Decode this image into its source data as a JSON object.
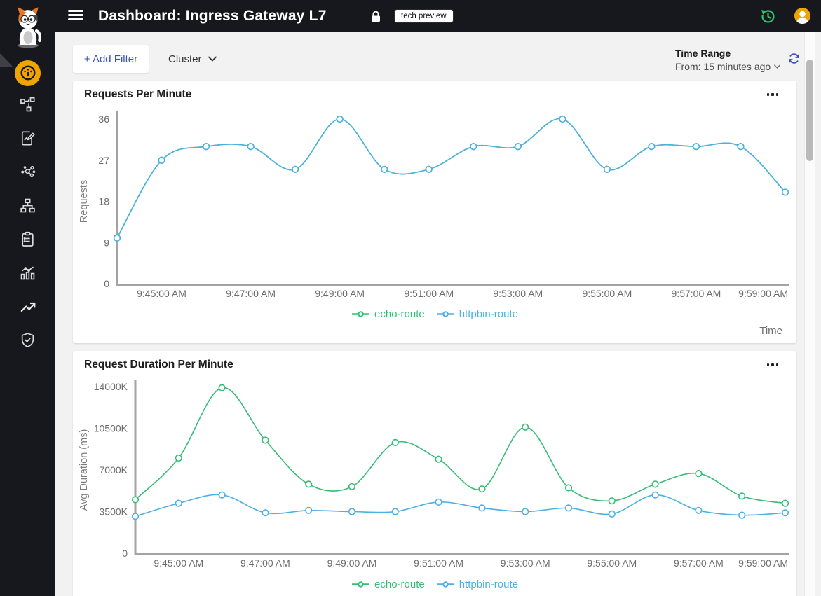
{
  "header": {
    "title": "Dashboard: Ingress Gateway L7",
    "badge": "tech preview",
    "icons": [
      "menu-icon",
      "lock-icon",
      "history-icon",
      "user-avatar-icon"
    ]
  },
  "sidebar": {
    "logo_icon": "cat-mascot-logo",
    "items": [
      {
        "icon": "gauge-icon",
        "active": true
      },
      {
        "icon": "topology-graph-icon",
        "active": false
      },
      {
        "icon": "document-edit-icon",
        "active": false
      },
      {
        "icon": "share-nodes-icon",
        "active": false
      },
      {
        "icon": "sitemap-icon",
        "active": false
      },
      {
        "icon": "clipboard-list-icon",
        "active": false
      },
      {
        "icon": "bar-chart-icon",
        "active": false
      },
      {
        "icon": "trending-up-icon",
        "active": false
      },
      {
        "icon": "shield-check-icon",
        "active": false
      }
    ]
  },
  "toolbar": {
    "add_filter_label": "+ Add Filter",
    "cluster_label": "Cluster",
    "time_range": {
      "label": "Time Range",
      "value": "From: 15 minutes ago"
    },
    "refresh_icon": "refresh-icon"
  },
  "colors": {
    "header_bg": "#17181d",
    "accent_orange": "#f0a400",
    "history_green": "#2ec46c",
    "indigo": "#3d52b5",
    "series_green": "#35bd75",
    "series_blue": "#4bb0e3",
    "page_bg": "#f2f2f3"
  },
  "chart_data": [
    {
      "type": "line",
      "title": "Requests Per Minute",
      "xlabel": "Time",
      "ylabel": "Requests",
      "x": [
        "9:44:00 AM",
        "9:45:00 AM",
        "9:46:00 AM",
        "9:47:00 AM",
        "9:48:00 AM",
        "9:49:00 AM",
        "9:50:00 AM",
        "9:51:00 AM",
        "9:52:00 AM",
        "9:53:00 AM",
        "9:54:00 AM",
        "9:55:00 AM",
        "9:56:00 AM",
        "9:57:00 AM",
        "9:58:00 AM",
        "9:59:00 AM"
      ],
      "x_tick_labels": [
        "9:45:00 AM",
        "9:47:00 AM",
        "9:49:00 AM",
        "9:51:00 AM",
        "9:53:00 AM",
        "9:55:00 AM",
        "9:57:00 AM",
        "9:59:00 AM"
      ],
      "y_ticks": [
        0,
        9,
        18,
        27,
        36
      ],
      "y_tick_labels": [
        "0",
        "9",
        "18",
        "27",
        "36"
      ],
      "ylim": [
        0,
        36
      ],
      "grid": false,
      "legend_position": "bottom",
      "note": "both series overlap exactly; blue httpbin-route line drawn on top",
      "series": [
        {
          "name": "echo-route",
          "color": "#35bd75",
          "values": [
            10,
            27,
            30,
            30,
            25,
            36,
            25,
            25,
            30,
            30,
            36,
            25,
            30,
            30,
            30,
            20
          ]
        },
        {
          "name": "httpbin-route",
          "color": "#4bb0e3",
          "values": [
            10,
            27,
            30,
            30,
            25,
            36,
            25,
            25,
            30,
            30,
            36,
            25,
            30,
            30,
            30,
            20
          ]
        }
      ]
    },
    {
      "type": "line",
      "title": "Request Duration Per Minute",
      "xlabel": "",
      "ylabel": "Avg Duration (ms)",
      "unit": "K",
      "x": [
        "9:44:00 AM",
        "9:45:00 AM",
        "9:46:00 AM",
        "9:47:00 AM",
        "9:48:00 AM",
        "9:49:00 AM",
        "9:50:00 AM",
        "9:51:00 AM",
        "9:52:00 AM",
        "9:53:00 AM",
        "9:54:00 AM",
        "9:55:00 AM",
        "9:56:00 AM",
        "9:57:00 AM",
        "9:58:00 AM",
        "9:59:00 AM"
      ],
      "x_tick_labels": [
        "9:45:00 AM",
        "9:47:00 AM",
        "9:49:00 AM",
        "9:51:00 AM",
        "9:53:00 AM",
        "9:55:00 AM",
        "9:57:00 AM",
        "9:59:00 AM"
      ],
      "y_ticks": [
        0,
        3500,
        7000,
        10500,
        14000
      ],
      "y_tick_labels": [
        "0",
        "3500K",
        "7000K",
        "10500K",
        "14000K"
      ],
      "ylim": [
        0,
        14000
      ],
      "grid": false,
      "legend_position": "bottom",
      "series": [
        {
          "name": "echo-route",
          "color": "#35bd75",
          "values": [
            4500,
            8000,
            13900,
            9500,
            5800,
            5600,
            9300,
            7900,
            5400,
            10600,
            5500,
            4400,
            5800,
            6700,
            4800,
            4200
          ]
        },
        {
          "name": "httpbin-route",
          "color": "#4bb0e3",
          "values": [
            3100,
            4200,
            4900,
            3400,
            3600,
            3500,
            3500,
            4300,
            3800,
            3500,
            3800,
            3300,
            4900,
            3600,
            3200,
            3400
          ]
        }
      ]
    }
  ]
}
